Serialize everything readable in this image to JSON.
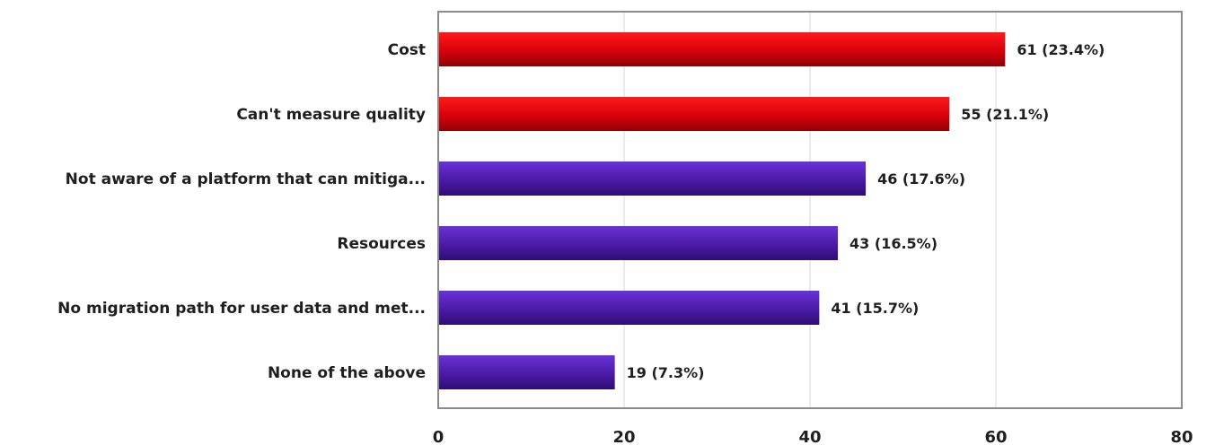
{
  "chart_data": {
    "type": "bar",
    "orientation": "horizontal",
    "categories": [
      "Cost",
      "Can't measure quality",
      "Not aware of a platform that can mitiga...",
      "Resources",
      "No migration path for user data and met...",
      "None of the above"
    ],
    "values": [
      61,
      55,
      46,
      43,
      41,
      19
    ],
    "value_labels": [
      "61 (23.4%)",
      "55 (21.1%)",
      "46 (17.6%)",
      "43 (16.5%)",
      "41 (15.7%)",
      "19 (7.3%)"
    ],
    "bar_colors": [
      "#c8000c",
      "#c8000c",
      "#4b1aa6",
      "#4b1aa6",
      "#4b1aa6",
      "#4b1aa6"
    ],
    "x_ticks": [
      0,
      20,
      40,
      60,
      80
    ],
    "xlim": [
      0,
      80
    ],
    "grid": true,
    "title": "",
    "xlabel": "",
    "ylabel": ""
  }
}
